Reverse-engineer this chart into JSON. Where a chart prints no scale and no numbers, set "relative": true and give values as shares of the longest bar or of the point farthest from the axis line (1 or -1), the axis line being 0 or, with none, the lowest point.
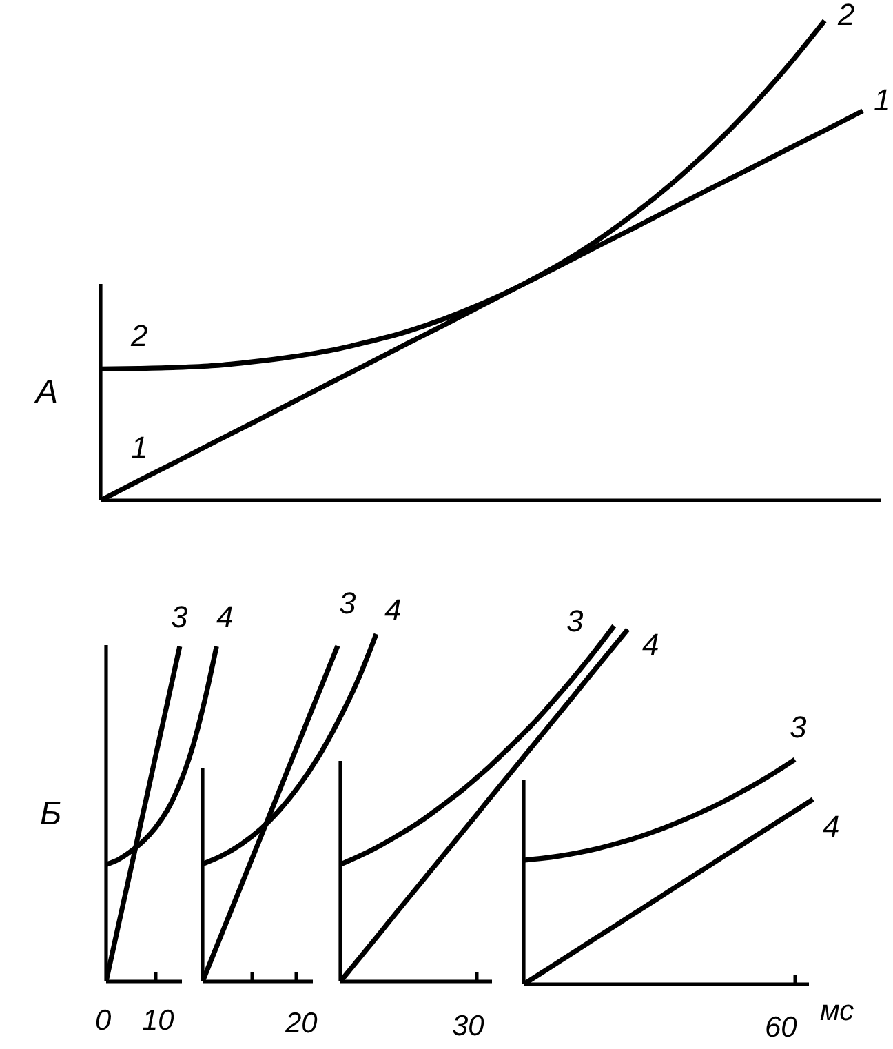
{
  "chart_data": [
    {
      "type": "line",
      "relative": true,
      "ylabel": "A",
      "categories": [
        null,
        null,
        null,
        null,
        null,
        null,
        null,
        null,
        null,
        null,
        null,
        null,
        null,
        null,
        null,
        null,
        null,
        null,
        null,
        null,
        null
      ],
      "series": [
        {
          "name": "1",
          "color": "#000000",
          "values": [
            0,
            0.041,
            0.081,
            0.122,
            0.162,
            0.203,
            0.244,
            0.284,
            0.325,
            0.365,
            0.406,
            0.447,
            0.487,
            0.528,
            0.568,
            0.609,
            0.65,
            0.69,
            0.731,
            0.771,
            0.812
          ]
        },
        {
          "name": "2",
          "color": "#000000",
          "values": [
            0.274,
            0.275,
            0.277,
            0.281,
            0.289,
            0.299,
            0.312,
            0.33,
            0.351,
            0.378,
            0.41,
            0.447,
            0.49,
            0.54,
            0.597,
            0.661,
            0.733,
            0.813,
            0.902,
            1.0,
            null
          ]
        }
      ]
    },
    {
      "type": "line",
      "relative": true,
      "ylabel": "Б",
      "annotations": [
        "0",
        "10"
      ],
      "categories": [
        null,
        null,
        null,
        null,
        null,
        null,
        null,
        null,
        null,
        null
      ],
      "series": [
        {
          "name": "3",
          "color": "#000000",
          "values": [
            0,
            0.167,
            0.333,
            0.5,
            0.667,
            0.833,
            1.0,
            null,
            null,
            null
          ]
        },
        {
          "name": "4",
          "color": "#000000",
          "values": [
            0.349,
            0.364,
            0.388,
            0.418,
            0.458,
            0.512,
            0.589,
            0.693,
            0.833,
            1.0
          ]
        }
      ]
    },
    {
      "type": "line",
      "relative": true,
      "annotations": [
        "20"
      ],
      "categories": [
        null,
        null,
        null,
        null,
        null,
        null,
        null,
        null,
        null,
        null
      ],
      "series": [
        {
          "name": "3",
          "color": "#000000",
          "values": [
            0,
            0.138,
            0.276,
            0.414,
            0.552,
            0.69,
            0.828,
            0.966,
            null,
            null
          ]
        },
        {
          "name": "4",
          "color": "#000000",
          "values": [
            0.338,
            0.362,
            0.395,
            0.438,
            0.494,
            0.563,
            0.646,
            0.746,
            0.861,
            1.0
          ]
        }
      ]
    },
    {
      "type": "line",
      "relative": true,
      "annotations": [
        "30"
      ],
      "categories": [
        null,
        null,
        null,
        null,
        null,
        null,
        null,
        null,
        null,
        null,
        null,
        null,
        null,
        null,
        null,
        null,
        null,
        null,
        null,
        null,
        null,
        null
      ],
      "series": [
        {
          "name": "3",
          "color": "#000000",
          "values": [
            0.329,
            0.346,
            0.364,
            0.384,
            0.406,
            0.429,
            0.454,
            0.482,
            0.511,
            0.541,
            0.574,
            0.608,
            0.645,
            0.683,
            0.722,
            0.764,
            0.808,
            0.853,
            0.9,
            0.949,
            1.0,
            null
          ]
        },
        {
          "name": "4",
          "color": "#000000",
          "values": [
            0,
            0.047,
            0.094,
            0.141,
            0.189,
            0.236,
            0.283,
            0.33,
            0.377,
            0.424,
            0.471,
            0.519,
            0.566,
            0.613,
            0.66,
            0.707,
            0.754,
            0.801,
            0.849,
            0.896,
            0.943,
            0.99
          ]
        }
      ]
    },
    {
      "type": "line",
      "relative": true,
      "annotations": [
        "60"
      ],
      "xlabel": "мс",
      "categories": [
        null,
        null,
        null,
        null,
        null,
        null,
        null,
        null,
        null,
        null,
        null,
        null,
        null,
        null,
        null,
        null,
        null
      ],
      "series": [
        {
          "name": "3",
          "color": "#000000",
          "values": [
            0.552,
            0.56,
            0.571,
            0.585,
            0.602,
            0.623,
            0.646,
            0.673,
            0.703,
            0.736,
            0.772,
            0.811,
            0.854,
            0.899,
            0.948,
            1.0,
            null
          ]
        },
        {
          "name": "4",
          "color": "#000000",
          "values": [
            0,
            0.051,
            0.103,
            0.154,
            0.206,
            0.257,
            0.309,
            0.36,
            0.412,
            0.463,
            0.514,
            0.566,
            0.617,
            0.669,
            0.72,
            0.771,
            0.823
          ]
        }
      ]
    }
  ]
}
